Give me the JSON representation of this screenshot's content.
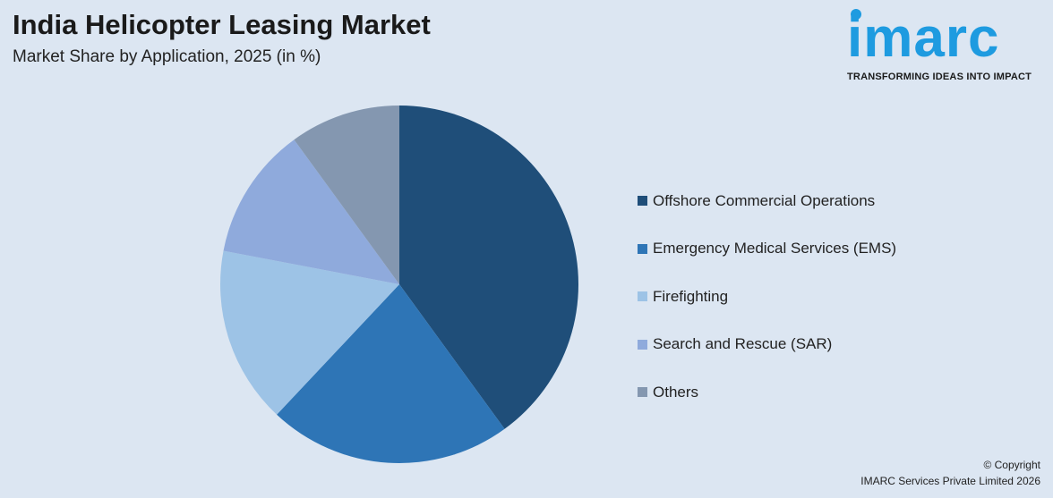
{
  "header": {
    "title": "India Helicopter Leasing Market",
    "subtitle": "Market Share by Application, 2025 (in %)"
  },
  "logo": {
    "word": "imarc",
    "tagline": "TRANSFORMING IDEAS INTO IMPACT"
  },
  "footer": {
    "line1": "© Copyright",
    "line2": "IMARC Services Private Limited 2026"
  },
  "chart_data": {
    "type": "pie",
    "title": "India Helicopter Leasing Market",
    "subtitle": "Market Share by Application, 2025 (in %)",
    "categories": [
      "Offshore Commercial Operations",
      "Emergency Medical Services (EMS)",
      "Firefighting",
      "Search and Rescue (SAR)",
      "Others"
    ],
    "values": [
      40,
      22,
      16,
      12,
      10
    ],
    "colors": [
      "#1f4e79",
      "#2e75b6",
      "#9dc3e6",
      "#8faadc",
      "#8497b0"
    ],
    "start_angle": "top, clockwise",
    "legend_position": "right"
  }
}
